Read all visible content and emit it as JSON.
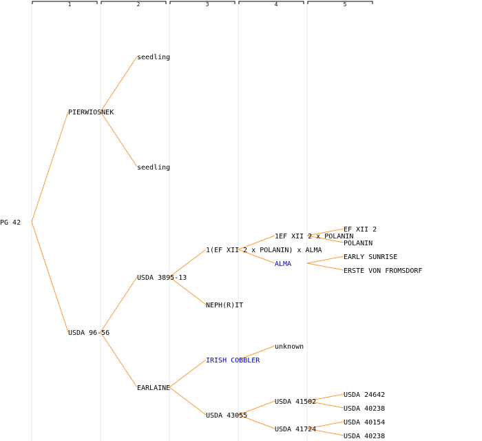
{
  "generations": [
    "1",
    "2",
    "3",
    "4",
    "5"
  ],
  "nodes": {
    "root": {
      "label": "PG 42",
      "linked": false
    },
    "pierwiosnek": {
      "label": "PIERWIOSNEK",
      "linked": false
    },
    "seedling_a": {
      "label": "seedling",
      "linked": false
    },
    "seedling_b": {
      "label": "seedling",
      "linked": false
    },
    "usda_96_56": {
      "label": "USDA 96-56",
      "linked": false
    },
    "usda_3895_13": {
      "label": "USDA 3895-13",
      "linked": false
    },
    "ef_polanin_alma": {
      "label": "1(EF XII 2 x POLANIN) x ALMA",
      "linked": false
    },
    "ef_polanin": {
      "label": "1EF XII 2 x POLANIN",
      "linked": false
    },
    "ef_xii_2": {
      "label": "EF XII 2",
      "linked": false
    },
    "polanin": {
      "label": "POLANIN",
      "linked": false
    },
    "alma": {
      "label": "ALMA",
      "linked": true
    },
    "early_sunrise": {
      "label": "EARLY SUNRISE",
      "linked": false
    },
    "erste_von_fromsdorf": {
      "label": "ERSTE VON FROMSDORF",
      "linked": false
    },
    "nephrit": {
      "label": "NEPH(R)IT",
      "linked": false
    },
    "earlaine": {
      "label": "EARLAINE",
      "linked": false
    },
    "irish_cobbler": {
      "label": "IRISH COBBLER",
      "linked": true
    },
    "unknown": {
      "label": "unknown",
      "linked": false
    },
    "usda_43055": {
      "label": "USDA 43055",
      "linked": false
    },
    "usda_41502": {
      "label": "USDA 41502",
      "linked": false
    },
    "usda_24642": {
      "label": "USDA 24642",
      "linked": false
    },
    "usda_40238_a": {
      "label": "USDA 40238",
      "linked": false
    },
    "usda_41724": {
      "label": "USDA 41724",
      "linked": false
    },
    "usda_40154": {
      "label": "USDA 40154",
      "linked": false
    },
    "usda_40238_b": {
      "label": "USDA 40238",
      "linked": false
    }
  },
  "edges": [
    [
      "root",
      "pierwiosnek"
    ],
    [
      "root",
      "usda_96_56"
    ],
    [
      "pierwiosnek",
      "seedling_a"
    ],
    [
      "pierwiosnek",
      "seedling_b"
    ],
    [
      "usda_96_56",
      "usda_3895_13"
    ],
    [
      "usda_96_56",
      "earlaine"
    ],
    [
      "usda_3895_13",
      "ef_polanin_alma"
    ],
    [
      "usda_3895_13",
      "nephrit"
    ],
    [
      "ef_polanin_alma",
      "ef_polanin"
    ],
    [
      "ef_polanin_alma",
      "alma"
    ],
    [
      "ef_polanin",
      "ef_xii_2"
    ],
    [
      "ef_polanin",
      "polanin"
    ],
    [
      "alma",
      "early_sunrise"
    ],
    [
      "alma",
      "erste_von_fromsdorf"
    ],
    [
      "earlaine",
      "irish_cobbler"
    ],
    [
      "earlaine",
      "usda_43055"
    ],
    [
      "irish_cobbler",
      "unknown"
    ],
    [
      "usda_43055",
      "usda_41502"
    ],
    [
      "usda_43055",
      "usda_41724"
    ],
    [
      "usda_41502",
      "usda_24642"
    ],
    [
      "usda_41502",
      "usda_40238_a"
    ],
    [
      "usda_41724",
      "usda_40154"
    ],
    [
      "usda_41724",
      "usda_40238_b"
    ]
  ],
  "colors": {
    "edge": "#ff9933",
    "link": "#0000cc",
    "text": "#000000"
  }
}
